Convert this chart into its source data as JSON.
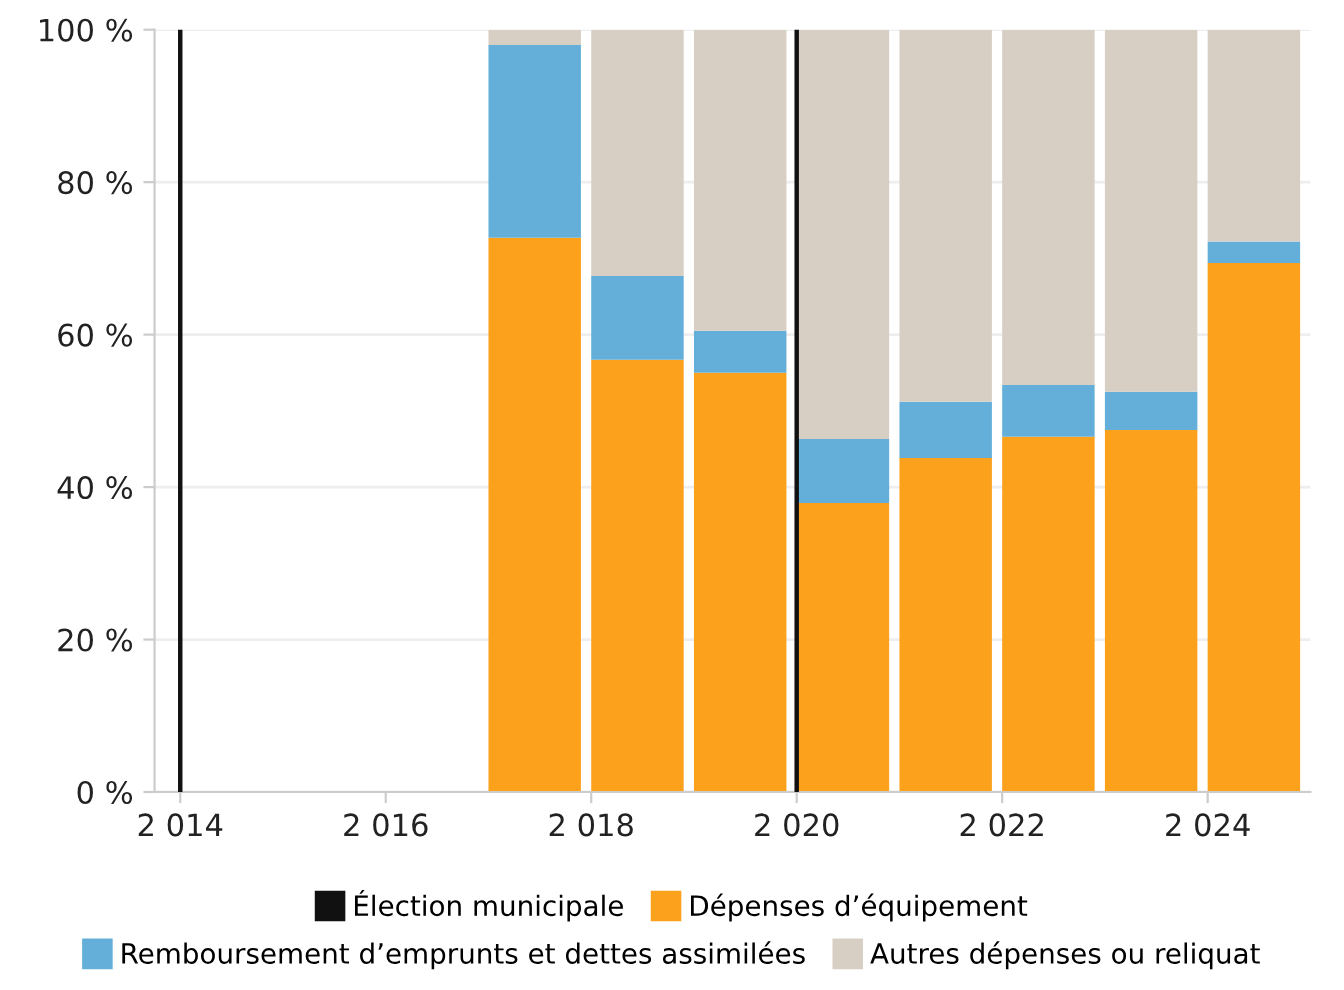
{
  "chart_data": {
    "type": "bar",
    "stacked": true,
    "x": [
      2017.45,
      2018.45,
      2019.45,
      2020.45,
      2021.45,
      2022.45,
      2023.45,
      2024.45
    ],
    "series": [
      {
        "name": "Dépenses d’équipement",
        "color": "#fca11c",
        "values": [
          72.7,
          56.7,
          55.0,
          37.9,
          43.8,
          46.6,
          47.5,
          69.4
        ]
      },
      {
        "name": "Remboursement d’emprunts et dettes assimilées",
        "color": "#64afd9",
        "values": [
          25.3,
          11.0,
          5.5,
          8.4,
          7.4,
          6.8,
          5.0,
          2.8
        ]
      },
      {
        "name": "Autres dépenses ou reliquat",
        "color": "#d8cfc4",
        "values": [
          2.0,
          32.3,
          39.5,
          53.7,
          48.8,
          46.6,
          47.5,
          27.8
        ]
      }
    ],
    "xlim": [
      2013.75,
      2025
    ],
    "xticks": [
      {
        "value": 2014,
        "label": "2 014"
      },
      {
        "value": 2016,
        "label": "2 016"
      },
      {
        "value": 2018,
        "label": "2 018"
      },
      {
        "value": 2020,
        "label": "2 020"
      },
      {
        "value": 2022,
        "label": "2 022"
      },
      {
        "value": 2024,
        "label": "2 024"
      }
    ],
    "ylim": [
      0,
      100
    ],
    "yticks": [
      {
        "value": 0,
        "label": "0 %"
      },
      {
        "value": 20,
        "label": "20 %"
      },
      {
        "value": 40,
        "label": "40 %"
      },
      {
        "value": 60,
        "label": "60 %"
      },
      {
        "value": 80,
        "label": "80 %"
      },
      {
        "value": 100,
        "label": "100 %"
      }
    ],
    "ref_lines": [
      {
        "axis": "x",
        "value": 2014,
        "label": "Élection municipale",
        "color": "#111111"
      },
      {
        "axis": "x",
        "value": 2020,
        "color": "#111111"
      }
    ],
    "grid": "y",
    "legend": "bottom"
  }
}
